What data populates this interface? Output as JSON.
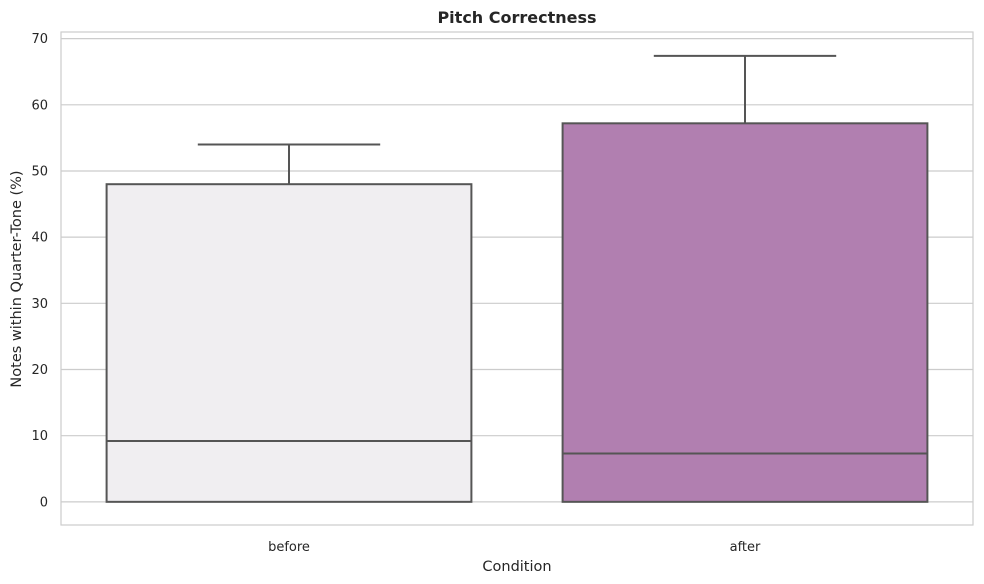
{
  "chart_data": {
    "type": "box",
    "title": "Pitch Correctness",
    "xlabel": "Condition",
    "ylabel": "Notes within Quarter-Tone (%)",
    "categories": [
      "before",
      "after"
    ],
    "ylim": [
      -3.5,
      71
    ],
    "yticks": [
      0,
      10,
      20,
      30,
      40,
      50,
      60,
      70
    ],
    "grid": true,
    "series": [
      {
        "category": "before",
        "min": 0,
        "q1": 0,
        "median": 9.2,
        "q3": 48,
        "max": 54,
        "color": "#f0eef1"
      },
      {
        "category": "after",
        "min": 0,
        "q1": 0,
        "median": 7.3,
        "q3": 57.2,
        "max": 67.4,
        "color": "#b17fb0"
      }
    ]
  }
}
